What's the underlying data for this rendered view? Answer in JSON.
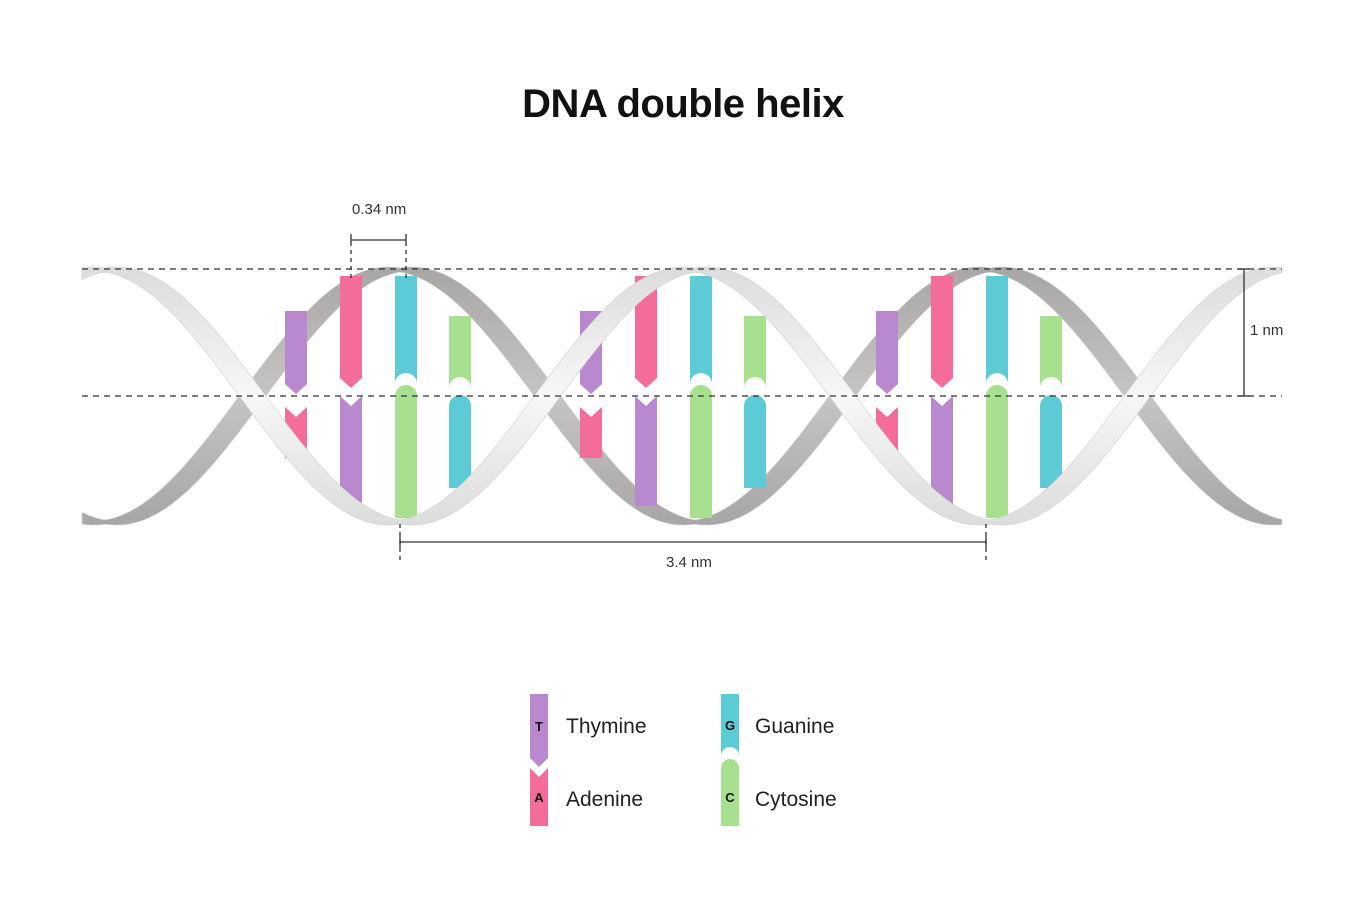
{
  "title": "DNA double helix",
  "dimensions": {
    "base_pair_rise": "0.34 nm",
    "helix_diameter": "1 nm",
    "helix_pitch": "3.4 nm"
  },
  "colors": {
    "thymine": "#b989cf",
    "adenine": "#f46c98",
    "guanine": "#5ccbd6",
    "cytosine": "#a7e08f",
    "front_strand": "#efefef",
    "back_strand": "#bdbaba"
  },
  "legend": [
    {
      "letter": "T",
      "name": "Thymine"
    },
    {
      "letter": "A",
      "name": "Adenine"
    },
    {
      "letter": "G",
      "name": "Guanine"
    },
    {
      "letter": "C",
      "name": "Cytosine"
    }
  ]
}
